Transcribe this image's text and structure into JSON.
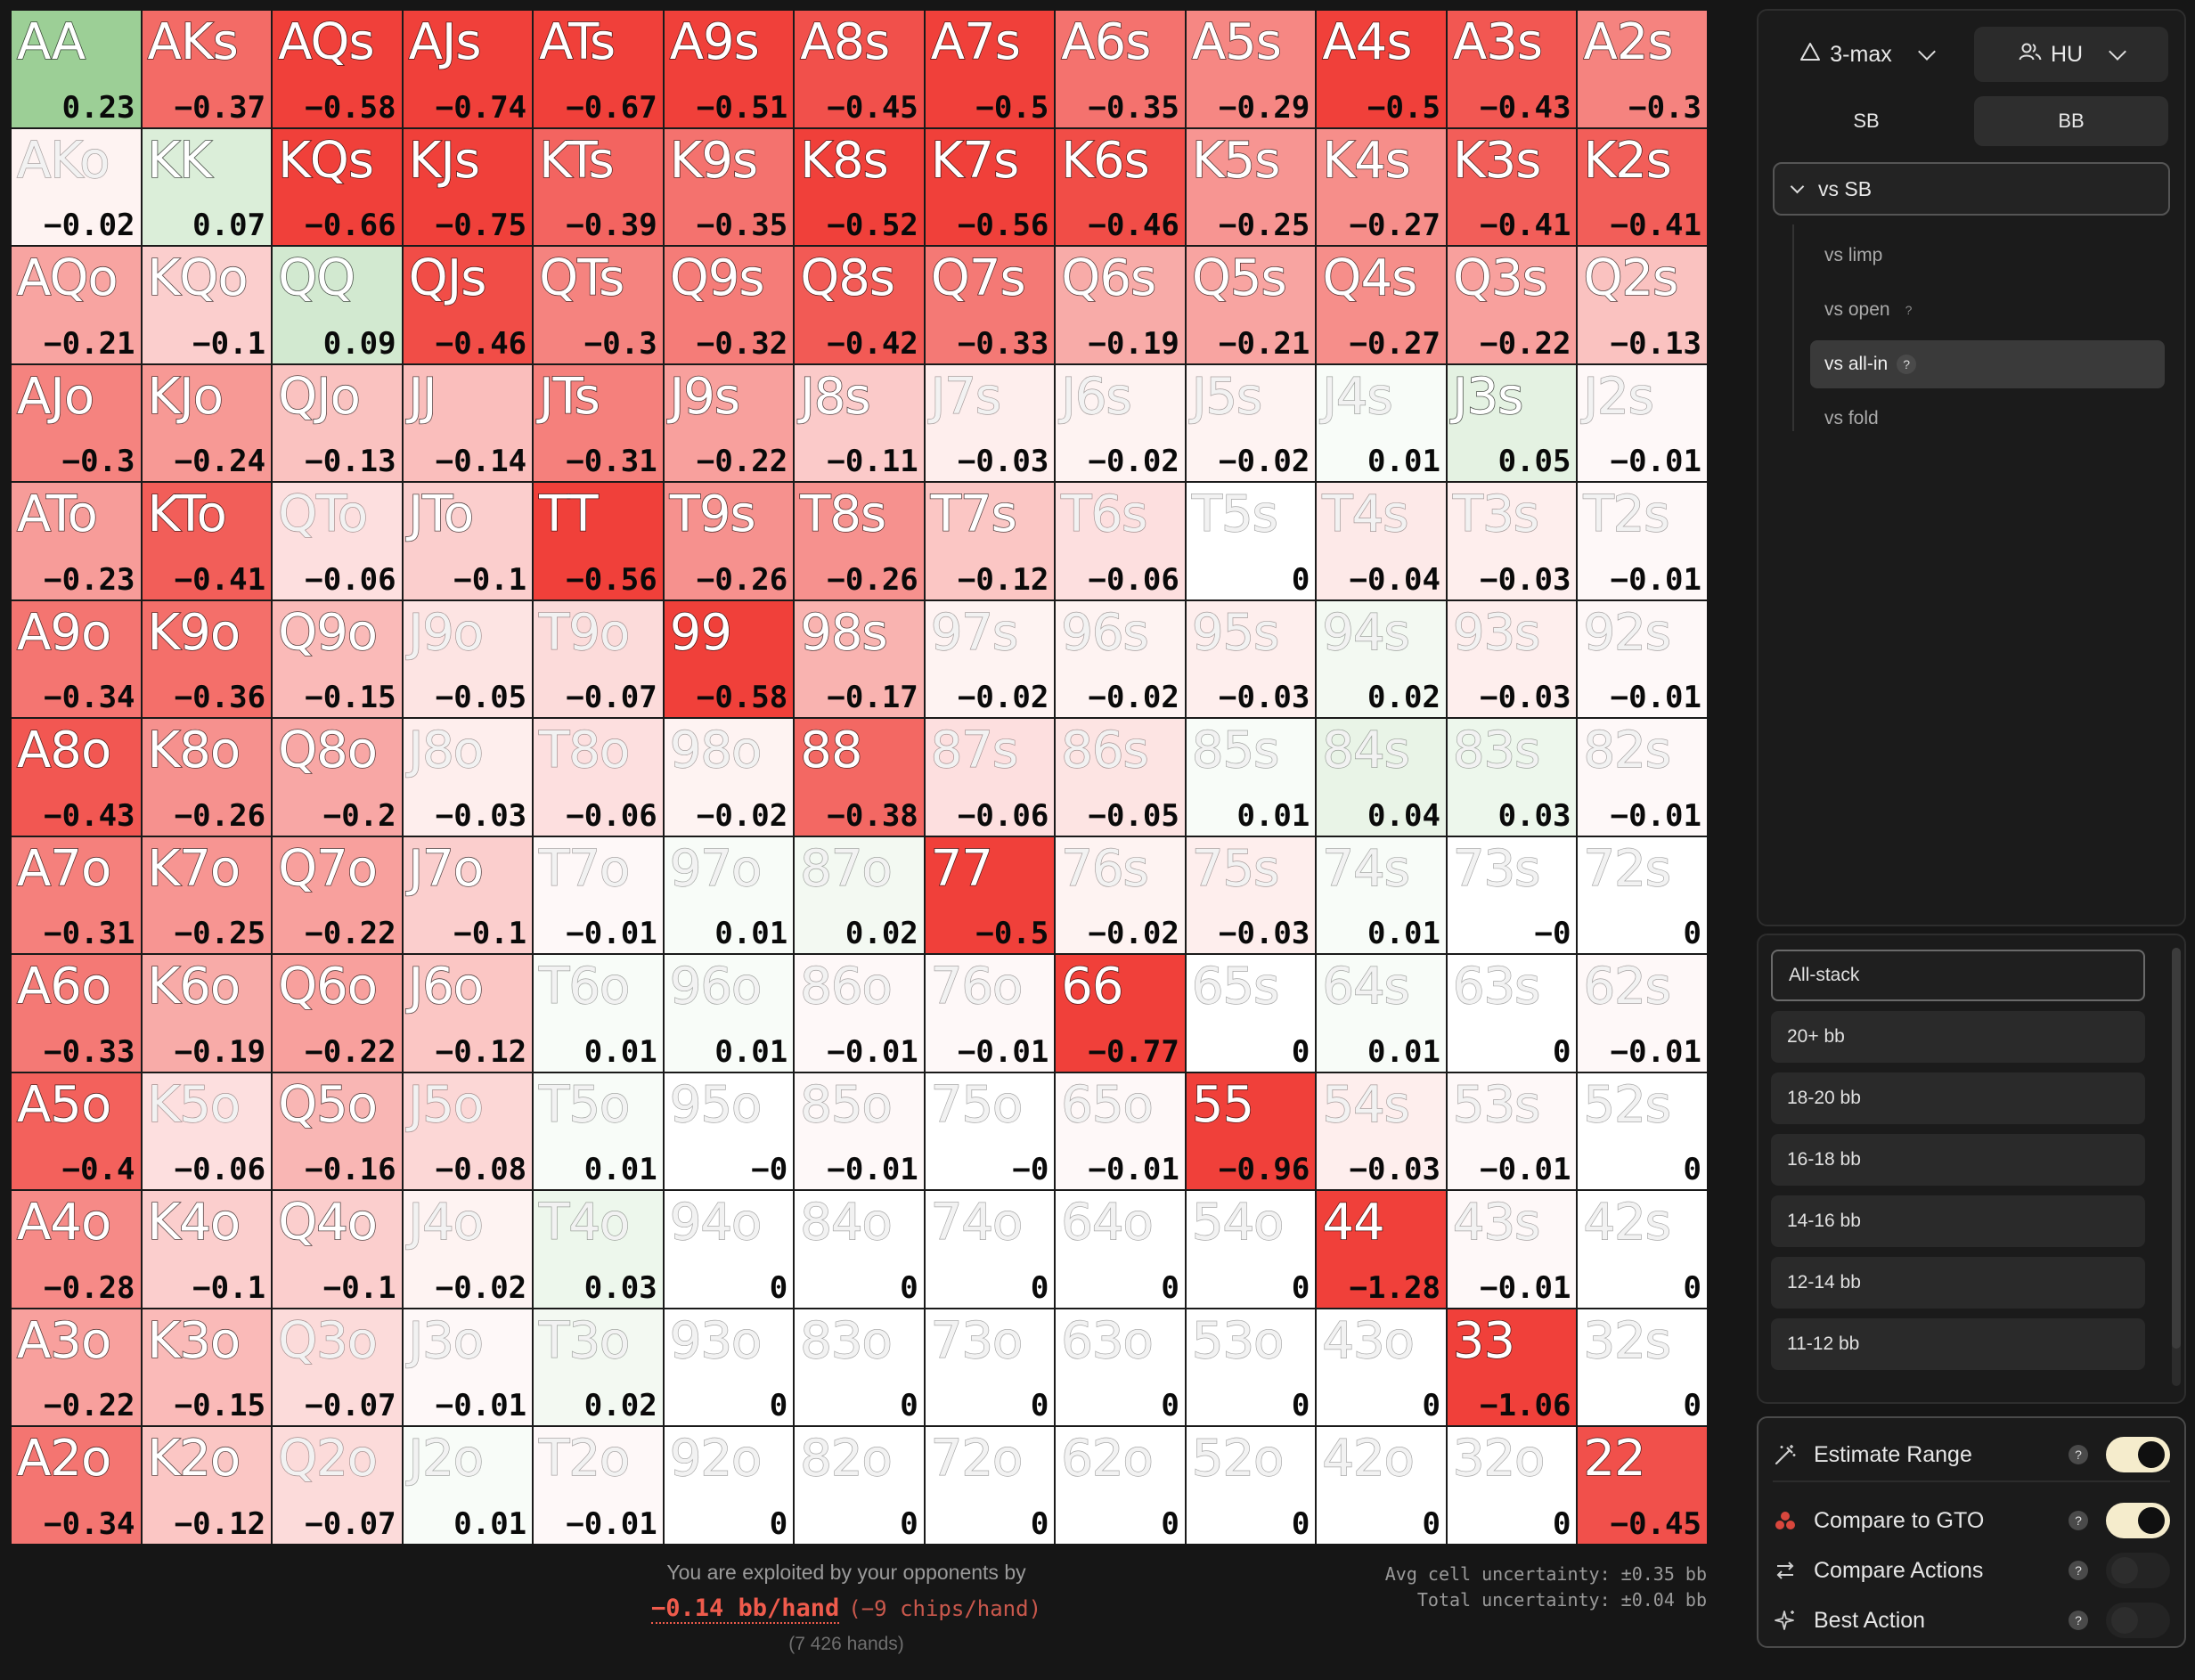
{
  "grid": {
    "rows": [
      [
        [
          "AA",
          "0.23"
        ],
        [
          "AKs",
          "−0.37"
        ],
        [
          "AQs",
          "−0.58"
        ],
        [
          "AJs",
          "−0.74"
        ],
        [
          "ATs",
          "−0.67"
        ],
        [
          "A9s",
          "−0.51"
        ],
        [
          "A8s",
          "−0.45"
        ],
        [
          "A7s",
          "−0.5"
        ],
        [
          "A6s",
          "−0.35"
        ],
        [
          "A5s",
          "−0.29"
        ],
        [
          "A4s",
          "−0.5"
        ],
        [
          "A3s",
          "−0.43"
        ],
        [
          "A2s",
          "−0.3"
        ]
      ],
      [
        [
          "AKo",
          "−0.02"
        ],
        [
          "KK",
          "0.07"
        ],
        [
          "KQs",
          "−0.66"
        ],
        [
          "KJs",
          "−0.75"
        ],
        [
          "KTs",
          "−0.39"
        ],
        [
          "K9s",
          "−0.35"
        ],
        [
          "K8s",
          "−0.52"
        ],
        [
          "K7s",
          "−0.56"
        ],
        [
          "K6s",
          "−0.46"
        ],
        [
          "K5s",
          "−0.25"
        ],
        [
          "K4s",
          "−0.27"
        ],
        [
          "K3s",
          "−0.41"
        ],
        [
          "K2s",
          "−0.41"
        ]
      ],
      [
        [
          "AQo",
          "−0.21"
        ],
        [
          "KQo",
          "−0.1"
        ],
        [
          "QQ",
          "0.09"
        ],
        [
          "QJs",
          "−0.46"
        ],
        [
          "QTs",
          "−0.3"
        ],
        [
          "Q9s",
          "−0.32"
        ],
        [
          "Q8s",
          "−0.42"
        ],
        [
          "Q7s",
          "−0.33"
        ],
        [
          "Q6s",
          "−0.19"
        ],
        [
          "Q5s",
          "−0.21"
        ],
        [
          "Q4s",
          "−0.27"
        ],
        [
          "Q3s",
          "−0.22"
        ],
        [
          "Q2s",
          "−0.13"
        ]
      ],
      [
        [
          "AJo",
          "−0.3"
        ],
        [
          "KJo",
          "−0.24"
        ],
        [
          "QJo",
          "−0.13"
        ],
        [
          "JJ",
          "−0.14"
        ],
        [
          "JTs",
          "−0.31"
        ],
        [
          "J9s",
          "−0.22"
        ],
        [
          "J8s",
          "−0.11"
        ],
        [
          "J7s",
          "−0.03"
        ],
        [
          "J6s",
          "−0.02"
        ],
        [
          "J5s",
          "−0.02"
        ],
        [
          "J4s",
          "0.01"
        ],
        [
          "J3s",
          "0.05"
        ],
        [
          "J2s",
          "−0.01"
        ]
      ],
      [
        [
          "ATo",
          "−0.23"
        ],
        [
          "KTo",
          "−0.41"
        ],
        [
          "QTo",
          "−0.06"
        ],
        [
          "JTo",
          "−0.1"
        ],
        [
          "TT",
          "−0.56"
        ],
        [
          "T9s",
          "−0.26"
        ],
        [
          "T8s",
          "−0.26"
        ],
        [
          "T7s",
          "−0.12"
        ],
        [
          "T6s",
          "−0.06"
        ],
        [
          "T5s",
          "0"
        ],
        [
          "T4s",
          "−0.04"
        ],
        [
          "T3s",
          "−0.03"
        ],
        [
          "T2s",
          "−0.01"
        ]
      ],
      [
        [
          "A9o",
          "−0.34"
        ],
        [
          "K9o",
          "−0.36"
        ],
        [
          "Q9o",
          "−0.15"
        ],
        [
          "J9o",
          "−0.05"
        ],
        [
          "T9o",
          "−0.07"
        ],
        [
          "99",
          "−0.58"
        ],
        [
          "98s",
          "−0.17"
        ],
        [
          "97s",
          "−0.02"
        ],
        [
          "96s",
          "−0.02"
        ],
        [
          "95s",
          "−0.03"
        ],
        [
          "94s",
          "0.02"
        ],
        [
          "93s",
          "−0.03"
        ],
        [
          "92s",
          "−0.01"
        ]
      ],
      [
        [
          "A8o",
          "−0.43"
        ],
        [
          "K8o",
          "−0.26"
        ],
        [
          "Q8o",
          "−0.2"
        ],
        [
          "J8o",
          "−0.03"
        ],
        [
          "T8o",
          "−0.06"
        ],
        [
          "98o",
          "−0.02"
        ],
        [
          "88",
          "−0.38"
        ],
        [
          "87s",
          "−0.06"
        ],
        [
          "86s",
          "−0.05"
        ],
        [
          "85s",
          "0.01"
        ],
        [
          "84s",
          "0.04"
        ],
        [
          "83s",
          "0.03"
        ],
        [
          "82s",
          "−0.01"
        ]
      ],
      [
        [
          "A7o",
          "−0.31"
        ],
        [
          "K7o",
          "−0.25"
        ],
        [
          "Q7o",
          "−0.22"
        ],
        [
          "J7o",
          "−0.1"
        ],
        [
          "T7o",
          "−0.01"
        ],
        [
          "97o",
          "0.01"
        ],
        [
          "87o",
          "0.02"
        ],
        [
          "77",
          "−0.5"
        ],
        [
          "76s",
          "−0.02"
        ],
        [
          "75s",
          "−0.03"
        ],
        [
          "74s",
          "0.01"
        ],
        [
          "73s",
          "−0"
        ],
        [
          "72s",
          "0"
        ]
      ],
      [
        [
          "A6o",
          "−0.33"
        ],
        [
          "K6o",
          "−0.19"
        ],
        [
          "Q6o",
          "−0.22"
        ],
        [
          "J6o",
          "−0.12"
        ],
        [
          "T6o",
          "0.01"
        ],
        [
          "96o",
          "0.01"
        ],
        [
          "86o",
          "−0.01"
        ],
        [
          "76o",
          "−0.01"
        ],
        [
          "66",
          "−0.77"
        ],
        [
          "65s",
          "0"
        ],
        [
          "64s",
          "0.01"
        ],
        [
          "63s",
          "0"
        ],
        [
          "62s",
          "−0.01"
        ]
      ],
      [
        [
          "A5o",
          "−0.4"
        ],
        [
          "K5o",
          "−0.06"
        ],
        [
          "Q5o",
          "−0.16"
        ],
        [
          "J5o",
          "−0.08"
        ],
        [
          "T5o",
          "0.01"
        ],
        [
          "95o",
          "−0"
        ],
        [
          "85o",
          "−0.01"
        ],
        [
          "75o",
          "−0"
        ],
        [
          "65o",
          "−0.01"
        ],
        [
          "55",
          "−0.96"
        ],
        [
          "54s",
          "−0.03"
        ],
        [
          "53s",
          "−0.01"
        ],
        [
          "52s",
          "0"
        ]
      ],
      [
        [
          "A4o",
          "−0.28"
        ],
        [
          "K4o",
          "−0.1"
        ],
        [
          "Q4o",
          "−0.1"
        ],
        [
          "J4o",
          "−0.02"
        ],
        [
          "T4o",
          "0.03"
        ],
        [
          "94o",
          "0"
        ],
        [
          "84o",
          "0"
        ],
        [
          "74o",
          "0"
        ],
        [
          "64o",
          "0"
        ],
        [
          "54o",
          "0"
        ],
        [
          "44",
          "−1.28"
        ],
        [
          "43s",
          "−0.01"
        ],
        [
          "42s",
          "0"
        ]
      ],
      [
        [
          "A3o",
          "−0.22"
        ],
        [
          "K3o",
          "−0.15"
        ],
        [
          "Q3o",
          "−0.07"
        ],
        [
          "J3o",
          "−0.01"
        ],
        [
          "T3o",
          "0.02"
        ],
        [
          "93o",
          "0"
        ],
        [
          "83o",
          "0"
        ],
        [
          "73o",
          "0"
        ],
        [
          "63o",
          "0"
        ],
        [
          "53o",
          "0"
        ],
        [
          "43o",
          "0"
        ],
        [
          "33",
          "−1.06"
        ],
        [
          "32s",
          "0"
        ]
      ],
      [
        [
          "A2o",
          "−0.34"
        ],
        [
          "K2o",
          "−0.12"
        ],
        [
          "Q2o",
          "−0.07"
        ],
        [
          "J2o",
          "0.01"
        ],
        [
          "T2o",
          "−0.01"
        ],
        [
          "92o",
          "0"
        ],
        [
          "82o",
          "0"
        ],
        [
          "72o",
          "0"
        ],
        [
          "62o",
          "0"
        ],
        [
          "52o",
          "0"
        ],
        [
          "42o",
          "0"
        ],
        [
          "32o",
          "0"
        ],
        [
          "22",
          "−0.45"
        ]
      ]
    ]
  },
  "footer": {
    "exploit_label": "You are exploited by your opponents by",
    "exploit_value": "−0.14 bb/hand",
    "exploit_chips": "(−9 chips/hand)",
    "hands_count": "(7 426 hands)",
    "avg_uncertainty": "Avg cell uncertainty: ±0.35 bb",
    "total_uncertainty": "Total uncertainty: ±0.04 bb"
  },
  "panel": {
    "format_label": "3-max",
    "format_icon": "triangle-icon",
    "mode_label": "HU",
    "mode_icon": "users-icon",
    "positions": [
      "SB",
      "BB"
    ],
    "selected_position": "BB",
    "tree_root": "vs SB",
    "tree_items": [
      {
        "label": "vs limp",
        "help": false,
        "active": false
      },
      {
        "label": "vs open",
        "help": true,
        "active": false
      },
      {
        "label": "vs all-in",
        "help": true,
        "active": true
      },
      {
        "label": "vs fold",
        "help": false,
        "active": false
      }
    ]
  },
  "stacks": {
    "items": [
      "All-stack",
      "20+ bb",
      "18-20 bb",
      "16-18 bb",
      "14-16 bb",
      "12-14 bb",
      "11-12 bb"
    ],
    "selected": "All-stack"
  },
  "toggles": [
    {
      "label": "Estimate Range",
      "icon": "magic-wand-icon",
      "on": true
    },
    {
      "label": "Compare to GTO",
      "icon": "compare-dots-icon",
      "on": true
    },
    {
      "label": "Compare Actions",
      "icon": "swap-arrows-icon",
      "on": false
    },
    {
      "label": "Best Action",
      "icon": "sparkles-icon",
      "on": false
    }
  ],
  "colors": {
    "negative_max": "#f0403a",
    "positive_max": "#9ccf96",
    "neutral": "#ffffff",
    "accent_red": "#ef5b4c",
    "toggle_on": "#f5eccc"
  }
}
